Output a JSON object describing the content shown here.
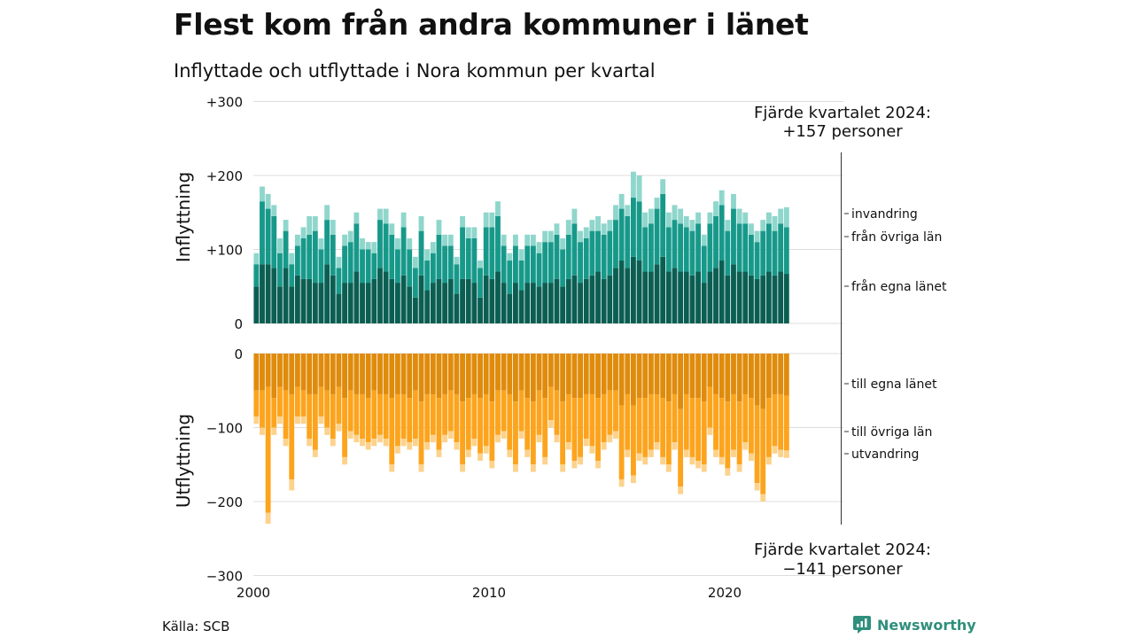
{
  "title": "Flest kom från andra kommuner i länet",
  "subtitle": "Inflyttade och utflyttade i Nora kommun per kvartal",
  "source": "Källa: SCB",
  "brand": "Newsworthy",
  "colors": {
    "in_own": "#0b5e52",
    "in_other": "#17998a",
    "in_immig": "#8fd6cc",
    "out_own": "#df8b0c",
    "out_other": "#fca41d",
    "out_emig": "#fcd28c",
    "grid": "#dddddd",
    "brand": "#2f8f7c"
  },
  "chart_data": {
    "type": "bar",
    "stacked": true,
    "x_ticks": [
      "2000",
      "2010",
      "2020"
    ],
    "y_top": {
      "title": "Inflyttning",
      "ticks": [
        "+300",
        "+200",
        "+100",
        "0"
      ],
      "tick_values": [
        300,
        200,
        100,
        0
      ],
      "range": [
        0,
        300
      ]
    },
    "y_bottom": {
      "title": "Utflyttning",
      "ticks": [
        "0",
        "−100",
        "−200",
        "−300"
      ],
      "tick_values": [
        0,
        -100,
        -200,
        -300
      ],
      "range": [
        -300,
        0
      ]
    },
    "legend_in": [
      "invandring",
      "från övriga län",
      "från egna länet"
    ],
    "legend_out": [
      "till egna länet",
      "till övriga län",
      "utvandring"
    ],
    "annotation_in": [
      "Fjärde kvartalet 2024:",
      "+157 personer"
    ],
    "annotation_out": [
      "Fjärde kvartalet 2024:",
      "−141 personer"
    ],
    "start_year": 2000,
    "quarters_per_year": 4,
    "inflow_totals": [
      95,
      185,
      175,
      160,
      115,
      140,
      95,
      120,
      130,
      145,
      145,
      115,
      160,
      140,
      90,
      120,
      125,
      150,
      115,
      110,
      110,
      155,
      155,
      135,
      115,
      150,
      115,
      90,
      145,
      100,
      110,
      140,
      120,
      120,
      90,
      145,
      130,
      130,
      85,
      150,
      150,
      165,
      120,
      95,
      120,
      100,
      120,
      120,
      110,
      125,
      125,
      135,
      115,
      140,
      155,
      125,
      130,
      140,
      145,
      135,
      140,
      160,
      175,
      160,
      205,
      200,
      150,
      155,
      170,
      195,
      150,
      160,
      155,
      145,
      140,
      150,
      120,
      150,
      165,
      180,
      140,
      175,
      155,
      150,
      135,
      125,
      140,
      150,
      145,
      155,
      157
    ],
    "inflow_own": [
      50,
      80,
      80,
      75,
      50,
      75,
      50,
      65,
      60,
      60,
      55,
      55,
      80,
      65,
      40,
      55,
      55,
      70,
      55,
      55,
      60,
      75,
      70,
      60,
      55,
      65,
      50,
      35,
      65,
      45,
      55,
      60,
      55,
      60,
      40,
      60,
      60,
      55,
      35,
      65,
      60,
      70,
      55,
      40,
      55,
      45,
      55,
      55,
      50,
      55,
      55,
      60,
      50,
      60,
      65,
      55,
      60,
      65,
      70,
      60,
      65,
      75,
      85,
      75,
      90,
      85,
      70,
      70,
      80,
      90,
      70,
      75,
      70,
      70,
      65,
      70,
      55,
      70,
      75,
      85,
      65,
      80,
      70,
      70,
      65,
      60,
      65,
      70,
      65,
      70,
      67
    ],
    "inflow_other": [
      30,
      85,
      75,
      70,
      45,
      50,
      30,
      40,
      55,
      60,
      70,
      45,
      60,
      55,
      35,
      50,
      55,
      65,
      45,
      45,
      35,
      65,
      65,
      60,
      45,
      65,
      50,
      40,
      60,
      40,
      40,
      60,
      50,
      45,
      40,
      70,
      55,
      60,
      40,
      65,
      70,
      75,
      50,
      45,
      50,
      40,
      50,
      50,
      45,
      55,
      55,
      60,
      50,
      60,
      70,
      55,
      55,
      60,
      55,
      60,
      60,
      65,
      70,
      70,
      80,
      80,
      60,
      65,
      75,
      85,
      60,
      65,
      65,
      60,
      60,
      65,
      50,
      65,
      70,
      75,
      60,
      75,
      65,
      65,
      55,
      50,
      60,
      65,
      60,
      65,
      63
    ],
    "outflow_totals": [
      -95,
      -110,
      -230,
      -110,
      -95,
      -125,
      -185,
      -95,
      -95,
      -125,
      -140,
      -95,
      -110,
      -125,
      -105,
      -150,
      -115,
      -120,
      -125,
      -130,
      -125,
      -120,
      -125,
      -160,
      -135,
      -125,
      -130,
      -125,
      -160,
      -130,
      -120,
      -140,
      -120,
      -115,
      -130,
      -160,
      -140,
      -125,
      -145,
      -135,
      -155,
      -120,
      -115,
      -140,
      -160,
      -115,
      -140,
      -160,
      -120,
      -150,
      -100,
      -120,
      -160,
      -130,
      -155,
      -150,
      -125,
      -135,
      -155,
      -130,
      -120,
      -115,
      -180,
      -140,
      -175,
      -145,
      -150,
      -140,
      -130,
      -150,
      -160,
      -130,
      -190,
      -140,
      -150,
      -155,
      -160,
      -110,
      -140,
      -150,
      -165,
      -140,
      -160,
      -130,
      -145,
      -185,
      -200,
      -150,
      -135,
      -140,
      -141
    ],
    "outflow_own": [
      -50,
      -50,
      -45,
      -60,
      -45,
      -50,
      -55,
      -45,
      -50,
      -55,
      -55,
      -45,
      -50,
      -55,
      -45,
      -60,
      -50,
      -55,
      -55,
      -60,
      -50,
      -55,
      -55,
      -60,
      -55,
      -55,
      -60,
      -50,
      -65,
      -55,
      -55,
      -60,
      -55,
      -50,
      -55,
      -65,
      -60,
      -55,
      -60,
      -55,
      -65,
      -50,
      -50,
      -55,
      -65,
      -50,
      -60,
      -65,
      -50,
      -60,
      -45,
      -50,
      -65,
      -55,
      -60,
      -60,
      -55,
      -55,
      -60,
      -55,
      -50,
      -50,
      -70,
      -55,
      -70,
      -60,
      -60,
      -55,
      -55,
      -60,
      -65,
      -55,
      -75,
      -55,
      -60,
      -60,
      -65,
      -45,
      -55,
      -60,
      -65,
      -55,
      -65,
      -55,
      -60,
      -70,
      -75,
      -60,
      -55,
      -55,
      -57
    ],
    "outflow_other": [
      -35,
      -50,
      -170,
      -40,
      -40,
      -65,
      -115,
      -40,
      -35,
      -60,
      -75,
      -40,
      -50,
      -60,
      -50,
      -80,
      -55,
      -55,
      -60,
      -60,
      -65,
      -55,
      -60,
      -90,
      -70,
      -60,
      -60,
      -65,
      -85,
      -65,
      -55,
      -70,
      -55,
      -55,
      -65,
      -85,
      -70,
      -60,
      -75,
      -70,
      -80,
      -60,
      -55,
      -75,
      -85,
      -55,
      -70,
      -85,
      -60,
      -80,
      -45,
      -60,
      -85,
      -65,
      -85,
      -80,
      -60,
      -70,
      -85,
      -65,
      -60,
      -55,
      -100,
      -75,
      -95,
      -75,
      -80,
      -75,
      -65,
      -80,
      -85,
      -65,
      -105,
      -75,
      -80,
      -85,
      -85,
      -55,
      -75,
      -80,
      -90,
      -75,
      -85,
      -65,
      -75,
      -105,
      -115,
      -80,
      -70,
      -75,
      -74
    ]
  }
}
